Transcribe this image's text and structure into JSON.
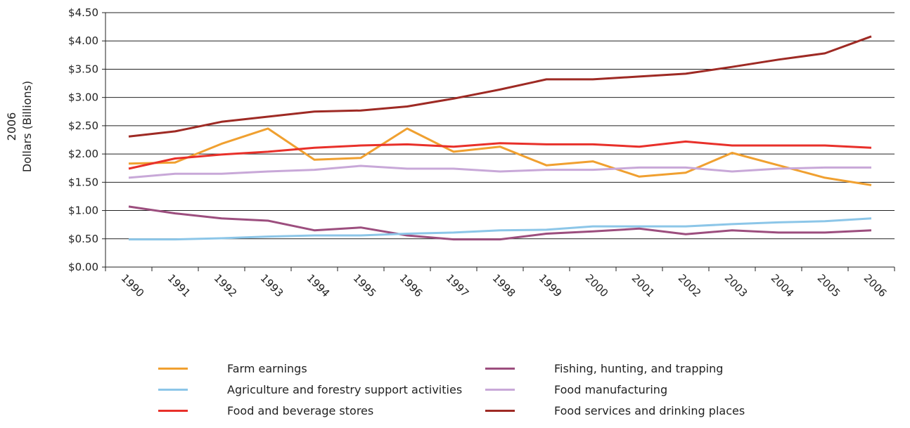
{
  "chart_data": {
    "type": "line",
    "ylabel_line1": "2006",
    "ylabel_line2": "Dollars (Billions)",
    "ylim": [
      0,
      4.5
    ],
    "y_ticks": [
      0,
      0.5,
      1.0,
      1.5,
      2.0,
      2.5,
      3.0,
      3.5,
      4.0,
      4.5
    ],
    "y_tick_labels": [
      "$0.00",
      "$0.50",
      "$1.00",
      "$1.50",
      "$2.00",
      "$2.50",
      "$3.00",
      "$3.50",
      "$4.00",
      "$4.50"
    ],
    "grid": true,
    "legend_placement": "bottom",
    "categories": [
      "1990",
      "1991",
      "1992",
      "1993",
      "1994",
      "1995",
      "1996",
      "1997",
      "1998",
      "1999",
      "2000",
      "2001",
      "2002",
      "2003",
      "2004",
      "2005",
      "2006"
    ],
    "series": [
      {
        "name": "Farm earnings",
        "color": "#F0A030",
        "values": [
          1.83,
          1.85,
          2.18,
          2.45,
          1.9,
          1.93,
          2.45,
          2.04,
          2.13,
          1.8,
          1.87,
          1.6,
          1.67,
          2.02,
          1.8,
          1.58,
          1.45
        ]
      },
      {
        "name": "Fishing, hunting, and trapping",
        "color": "#9C4E7E",
        "values": [
          1.07,
          0.95,
          0.86,
          0.82,
          0.65,
          0.7,
          0.56,
          0.49,
          0.49,
          0.59,
          0.63,
          0.68,
          0.58,
          0.65,
          0.61,
          0.61,
          0.65
        ]
      },
      {
        "name": "Agriculture and forestry support activities",
        "color": "#8CC6E8",
        "values": [
          0.49,
          0.49,
          0.51,
          0.54,
          0.56,
          0.56,
          0.59,
          0.61,
          0.65,
          0.66,
          0.72,
          0.72,
          0.72,
          0.76,
          0.79,
          0.81,
          0.86
        ]
      },
      {
        "name": "Food manufacturing",
        "color": "#C8A8D8",
        "values": [
          1.58,
          1.65,
          1.65,
          1.69,
          1.72,
          1.79,
          1.74,
          1.74,
          1.69,
          1.72,
          1.72,
          1.76,
          1.76,
          1.69,
          1.74,
          1.76,
          1.76
        ]
      },
      {
        "name": "Food and beverage stores",
        "color": "#E8302A",
        "values": [
          1.74,
          1.92,
          1.99,
          2.04,
          2.11,
          2.15,
          2.17,
          2.13,
          2.19,
          2.17,
          2.17,
          2.13,
          2.22,
          2.15,
          2.15,
          2.15,
          2.11
        ]
      },
      {
        "name": "Food services and drinking places",
        "color": "#9E2A24",
        "values": [
          2.31,
          2.4,
          2.57,
          2.66,
          2.75,
          2.77,
          2.84,
          2.98,
          3.14,
          3.32,
          3.32,
          3.37,
          3.42,
          3.54,
          3.67,
          3.78,
          4.08
        ]
      }
    ]
  }
}
